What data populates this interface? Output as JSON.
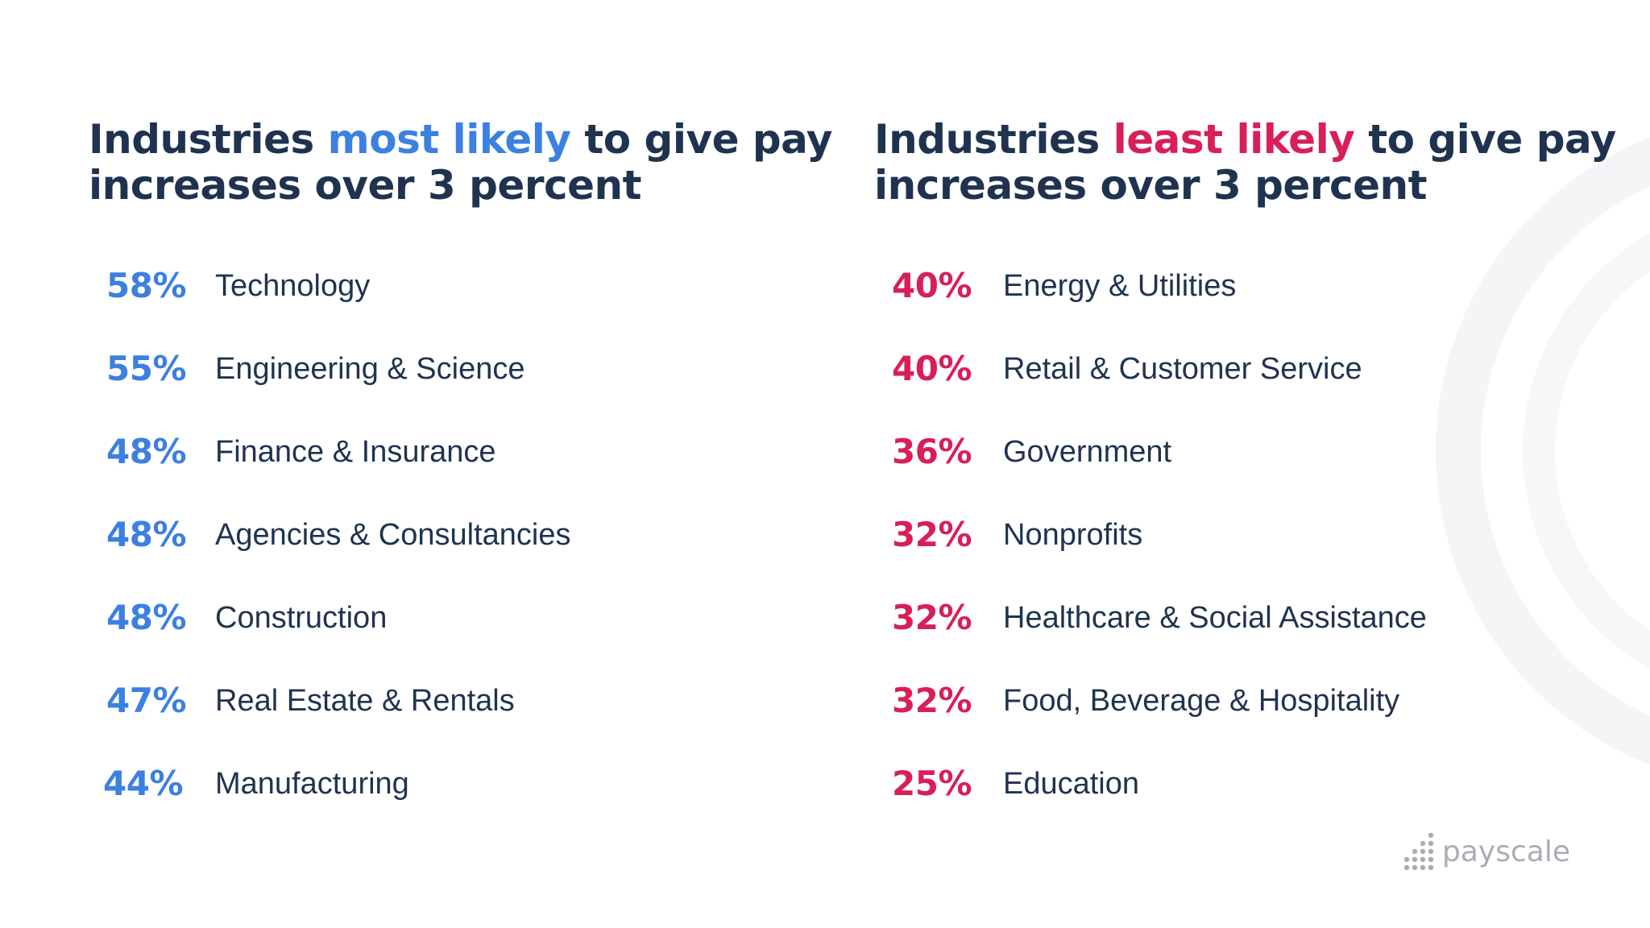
{
  "left": {
    "heading": {
      "pre": "Industries ",
      "highlight": "most likely",
      "post_line1": " to give pay",
      "line2": "increases over 3 percent"
    },
    "accent_color": "#3c80e0",
    "items": [
      {
        "percent": "58%",
        "label": "Technology"
      },
      {
        "percent": "55%",
        "label": "Engineering & Science"
      },
      {
        "percent": "48%",
        "label": "Finance & Insurance"
      },
      {
        "percent": "48%",
        "label": "Agencies & Consultancies"
      },
      {
        "percent": "48%",
        "label": "Construction"
      },
      {
        "percent": "47%",
        "label": "Real Estate & Rentals"
      },
      {
        "percent": "44%",
        "label": "Manufacturing"
      }
    ]
  },
  "right": {
    "heading": {
      "pre": "Industries ",
      "highlight": "least likely",
      "post_line1": " to give pay",
      "line2": "increases over 3 percent"
    },
    "accent_color": "#d81f58",
    "items": [
      {
        "percent": "40%",
        "label": "Energy & Utilities"
      },
      {
        "percent": "40%",
        "label": "Retail & Customer Service"
      },
      {
        "percent": "36%",
        "label": "Government"
      },
      {
        "percent": "32%",
        "label": "Nonprofits"
      },
      {
        "percent": "32%",
        "label": "Healthcare & Social Assistance"
      },
      {
        "percent": "32%",
        "label": "Food, Beverage & Hospitality"
      },
      {
        "percent": "25%",
        "label": "Education"
      }
    ]
  },
  "logo": {
    "text": "payscale",
    "icon": "dot-grid-logo-icon"
  },
  "colors": {
    "heading": "#1f3350",
    "label": "#1f3350",
    "logo": "#a9adb4"
  }
}
